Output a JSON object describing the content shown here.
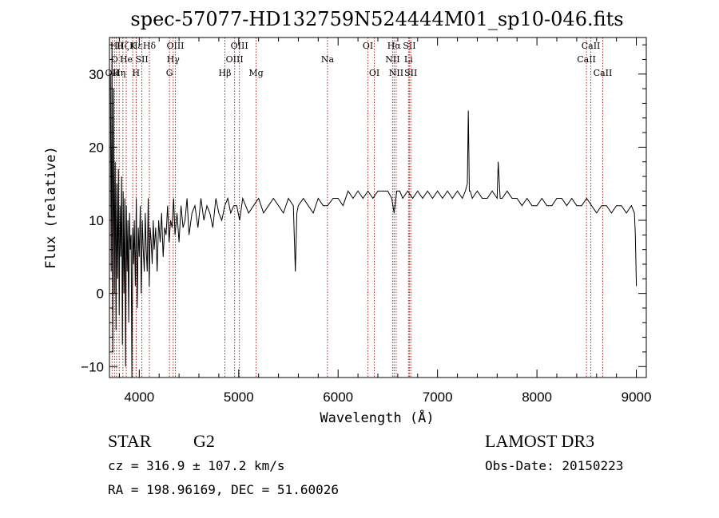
{
  "chart_data": {
    "type": "line",
    "title": "spec-57077-HD132759N524444M01_sp10-046.fits",
    "xlabel": "Wavelength (Å)",
    "ylabel": "Flux (relative)",
    "xlim": [
      3700,
      9100
    ],
    "ylim": [
      -11.5,
      35
    ],
    "xticks": [
      4000,
      5000,
      6000,
      7000,
      8000,
      9000
    ],
    "yticks": [
      -10,
      0,
      10,
      20,
      30
    ],
    "line_color": "#000000",
    "marker_color": "#b22222",
    "series": [
      {
        "name": "spectrum",
        "x": [
          3710,
          3718,
          3726,
          3734,
          3742,
          3750,
          3758,
          3766,
          3774,
          3782,
          3790,
          3798,
          3806,
          3814,
          3822,
          3830,
          3838,
          3846,
          3854,
          3862,
          3870,
          3878,
          3886,
          3894,
          3902,
          3910,
          3918,
          3926,
          3934,
          3942,
          3950,
          3960,
          3970,
          3980,
          3990,
          4000,
          4010,
          4020,
          4030,
          4040,
          4050,
          4060,
          4070,
          4080,
          4090,
          4100,
          4110,
          4120,
          4130,
          4140,
          4150,
          4165,
          4180,
          4195,
          4210,
          4225,
          4240,
          4255,
          4270,
          4285,
          4300,
          4315,
          4330,
          4345,
          4360,
          4380,
          4400,
          4420,
          4440,
          4460,
          4480,
          4500,
          4530,
          4560,
          4590,
          4620,
          4650,
          4680,
          4710,
          4740,
          4770,
          4800,
          4830,
          4860,
          4890,
          4920,
          4950,
          4980,
          5010,
          5040,
          5070,
          5100,
          5150,
          5200,
          5250,
          5300,
          5350,
          5400,
          5450,
          5500,
          5550,
          5570,
          5585,
          5600,
          5650,
          5700,
          5750,
          5800,
          5850,
          5893,
          5950,
          6000,
          6050,
          6100,
          6150,
          6200,
          6250,
          6300,
          6350,
          6400,
          6450,
          6500,
          6540,
          6563,
          6590,
          6620,
          6650,
          6700,
          6750,
          6800,
          6850,
          6900,
          6950,
          7000,
          7050,
          7100,
          7150,
          7200,
          7250,
          7280,
          7300,
          7310,
          7320,
          7330,
          7350,
          7400,
          7450,
          7500,
          7550,
          7600,
          7610,
          7630,
          7650,
          7700,
          7750,
          7800,
          7850,
          7900,
          7950,
          8000,
          8050,
          8100,
          8150,
          8200,
          8250,
          8300,
          8350,
          8400,
          8450,
          8500,
          8550,
          8600,
          8650,
          8700,
          8750,
          8800,
          8850,
          8900,
          8950,
          8980,
          8990,
          9000
        ],
        "y": [
          30,
          3,
          34,
          -8,
          28,
          0,
          18,
          -5,
          15,
          2,
          17,
          -3,
          12,
          5,
          16,
          -7,
          14,
          0,
          13,
          -10,
          12,
          3,
          10,
          -4,
          11,
          6,
          8,
          -12,
          9,
          4,
          10,
          1,
          13,
          -2,
          9,
          5,
          12,
          0,
          10,
          6,
          3,
          11,
          6,
          3,
          13,
          1,
          9,
          7,
          4,
          10,
          6,
          9,
          3,
          10,
          7,
          11,
          5,
          9,
          8,
          12,
          7,
          10,
          9,
          13,
          8,
          11,
          7,
          12,
          9,
          10,
          13,
          8,
          11,
          12,
          9,
          13,
          10,
          12,
          11,
          9,
          13,
          11,
          10,
          12,
          13,
          11,
          12,
          12,
          10,
          13,
          12,
          11,
          12,
          13,
          11,
          12,
          13,
          12,
          11,
          13,
          12,
          3,
          11,
          12,
          13,
          12,
          11,
          13,
          12,
          12,
          13,
          13,
          12,
          14,
          13,
          14,
          13,
          14,
          13,
          14,
          14,
          14,
          13,
          11,
          14,
          14,
          13,
          14,
          13,
          14,
          13,
          14,
          13,
          14,
          13,
          14,
          13,
          14,
          13,
          14,
          15,
          25,
          14,
          14,
          13,
          14,
          13,
          13,
          14,
          13,
          18,
          13,
          13,
          14,
          13,
          13,
          12,
          13,
          12,
          12,
          13,
          12,
          12,
          13,
          13,
          12,
          13,
          12,
          12,
          13,
          12,
          11,
          12,
          12,
          11,
          12,
          12,
          11,
          12,
          11,
          8,
          1
        ]
      }
    ],
    "line_markers": [
      {
        "wave": 3727,
        "label": "OII",
        "row": 2
      },
      {
        "wave": 3751,
        "label": "O",
        "row": 1
      },
      {
        "wave": 3771,
        "label": "Hθ",
        "row": 0
      },
      {
        "wave": 3798,
        "label": "Hη",
        "row": 2
      },
      {
        "wave": 3835,
        "label": "Hζ",
        "row": 0
      },
      {
        "wave": 3869,
        "label": "He",
        "row": 1
      },
      {
        "wave": 3934,
        "label": "K",
        "row": 0
      },
      {
        "wave": 3968,
        "label": "H",
        "row": 2
      },
      {
        "wave": 3970,
        "label": "Hε",
        "row": 0
      },
      {
        "wave": 4026,
        "label": "SII",
        "row": 1
      },
      {
        "wave": 4102,
        "label": "Hδ",
        "row": 0
      },
      {
        "wave": 4304,
        "label": "G",
        "row": 2
      },
      {
        "wave": 4341,
        "label": "Hγ",
        "row": 1
      },
      {
        "wave": 4363,
        "label": "OIII",
        "row": 0
      },
      {
        "wave": 4861,
        "label": "Hβ",
        "row": 2
      },
      {
        "wave": 4959,
        "label": "OIII",
        "row": 1
      },
      {
        "wave": 5007,
        "label": "OIII",
        "row": 0
      },
      {
        "wave": 5175,
        "label": "Mg",
        "row": 2
      },
      {
        "wave": 5893,
        "label": "Na",
        "row": 1
      },
      {
        "wave": 6300,
        "label": "OI",
        "row": 0
      },
      {
        "wave": 6364,
        "label": "OI",
        "row": 2
      },
      {
        "wave": 6548,
        "label": "NII",
        "row": 1
      },
      {
        "wave": 6563,
        "label": "Hα",
        "row": 0
      },
      {
        "wave": 6584,
        "label": "NII",
        "row": 2
      },
      {
        "wave": 6708,
        "label": "Li",
        "row": 1
      },
      {
        "wave": 6717,
        "label": "SII",
        "row": 0
      },
      {
        "wave": 6731,
        "label": "SII",
        "row": 2
      },
      {
        "wave": 8498,
        "label": "CaII",
        "row": 1
      },
      {
        "wave": 8542,
        "label": "CaII",
        "row": 0
      },
      {
        "wave": 8662,
        "label": "CaII",
        "row": 2
      }
    ]
  },
  "info": {
    "object_class": "STAR",
    "subclass": "G2",
    "survey": "LAMOST DR3",
    "cz": "cz = 316.9 ± 107.2 km/s",
    "obs_date": "Obs-Date: 20150223",
    "coords": "RA = 198.96169, DEC =  51.60026"
  }
}
